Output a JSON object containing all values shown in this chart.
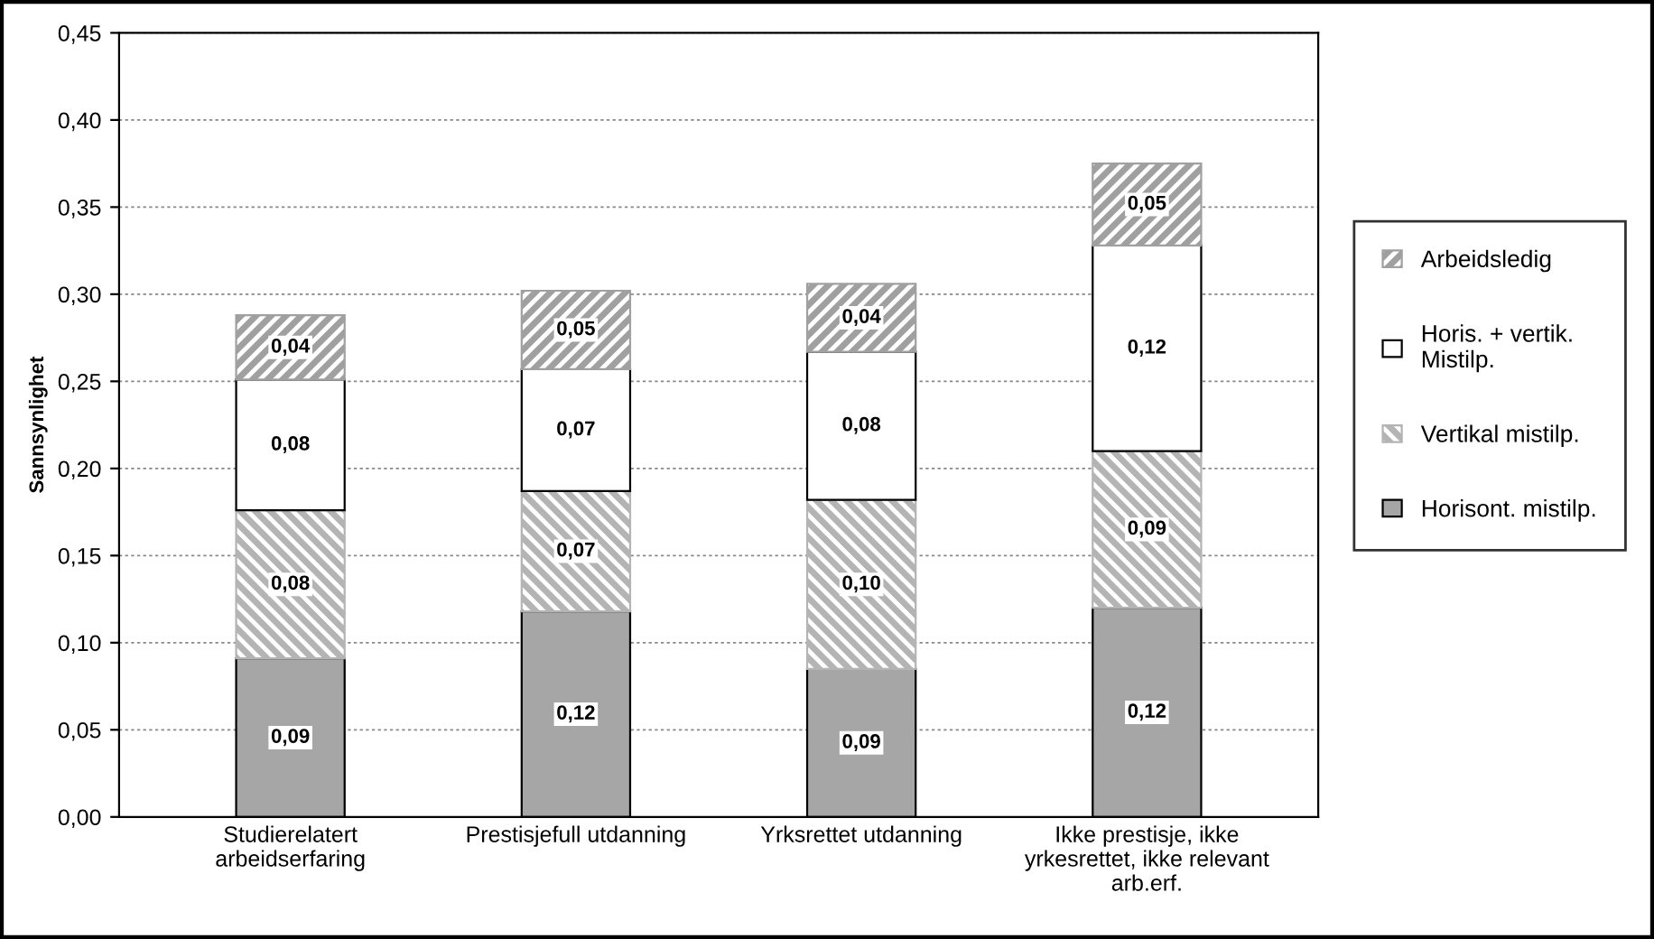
{
  "chart_data": {
    "type": "bar",
    "stacked": true,
    "ylabel": "Sannsynlighet",
    "categories": [
      "Studierelatert\narbeidserfaring",
      "Prestisjefull utdanning",
      "Yrksrettet utdanning",
      "Ikke prestisje, ikke\nyrkesrettet, ikke relevant\narb.erf."
    ],
    "series": [
      {
        "name": "Horisont. mistilp.",
        "color": "#a6a6a6",
        "values": [
          0.091,
          0.118,
          0.085,
          0.12
        ],
        "value_labels": [
          "0,09",
          "0,12",
          "0,09",
          "0,12"
        ]
      },
      {
        "name": "Vertikal mistilp.",
        "color": "#b4b4b4",
        "values": [
          0.085,
          0.069,
          0.097,
          0.09
        ],
        "value_labels": [
          "0,08",
          "0,07",
          "0,10",
          "0,09"
        ]
      },
      {
        "name": "Horis. + vertik.\nMistilp.",
        "color": "#ffffff",
        "values": [
          0.075,
          0.07,
          0.085,
          0.118
        ],
        "value_labels": [
          "0,08",
          "0,07",
          "0,08",
          "0,12"
        ]
      },
      {
        "name": "Arbeidsledig",
        "color": "#a0a0a0",
        "values": [
          0.037,
          0.045,
          0.039,
          0.047
        ],
        "value_labels": [
          "0,04",
          "0,05",
          "0,04",
          "0,05"
        ]
      }
    ],
    "ylim": [
      0,
      0.45
    ],
    "yticks": [
      {
        "value": 0,
        "label": "0,00"
      },
      {
        "value": 0.05,
        "label": "0,05"
      },
      {
        "value": 0.1,
        "label": "0,10"
      },
      {
        "value": 0.15,
        "label": "0,15"
      },
      {
        "value": 0.2,
        "label": "0,20"
      },
      {
        "value": 0.25,
        "label": "0,25"
      },
      {
        "value": 0.3,
        "label": "0,30"
      },
      {
        "value": 0.35,
        "label": "0,35"
      },
      {
        "value": 0.4,
        "label": "0,40"
      },
      {
        "value": 0.45,
        "label": "0,45"
      }
    ],
    "grid": "y",
    "legend": "right"
  }
}
